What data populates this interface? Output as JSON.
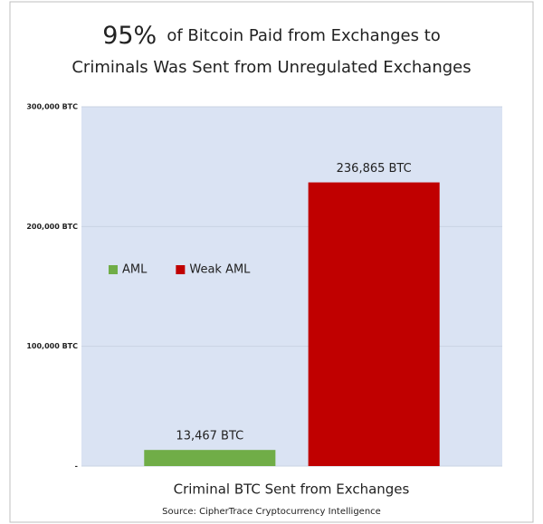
{
  "chart_data": {
    "type": "bar",
    "title_highlight": "95%",
    "title_lines": [
      "of Bitcoin Paid from Exchanges  to",
      "Criminals Was Sent from Unregulated Exchanges"
    ],
    "categories": [
      "Criminal BTC Sent from Exchanges"
    ],
    "series": [
      {
        "name": "AML",
        "color": "#70ad47",
        "values": [
          13467
        ],
        "value_labels": [
          "13,467 BTC"
        ]
      },
      {
        "name": "Weak AML",
        "color": "#c00000",
        "values": [
          236865
        ],
        "value_labels": [
          "236,865 BTC"
        ]
      }
    ],
    "ylim": [
      0,
      300000
    ],
    "yticks": [
      {
        "value": 0,
        "label": "-"
      },
      {
        "value": 100000,
        "label": "100,000 BTC"
      },
      {
        "value": 200000,
        "label": "200,000 BTC"
      },
      {
        "value": 300000,
        "label": "300,000 BTC"
      }
    ],
    "grid": true,
    "legend": "left",
    "source": "Source: CipherTrace Cryptocurrency Intelligence"
  }
}
